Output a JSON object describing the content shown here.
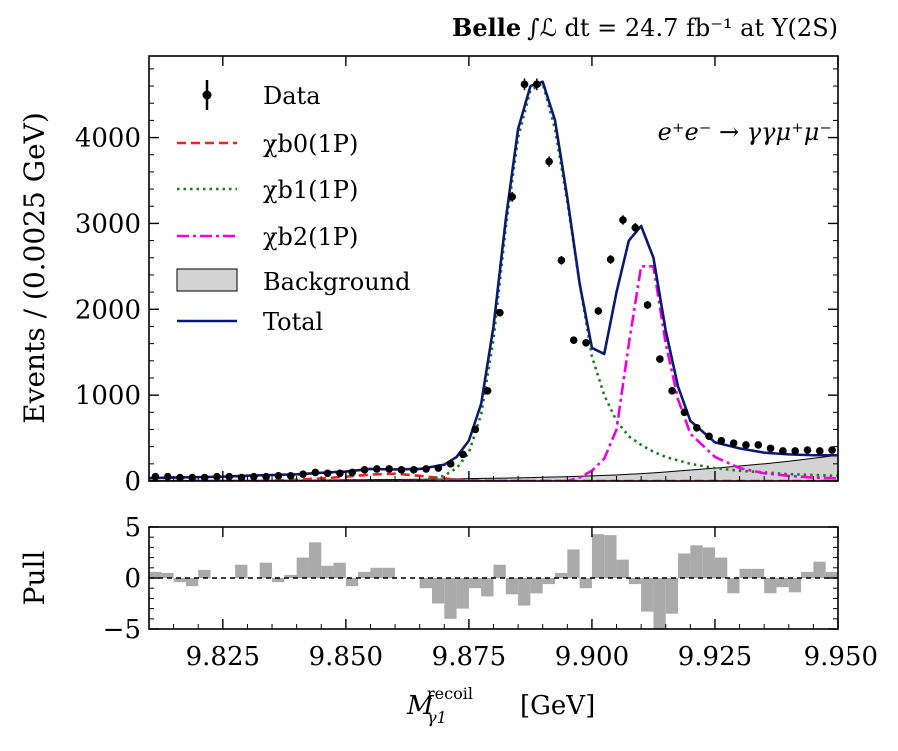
{
  "header": {
    "experiment": "Belle",
    "lumi_text": "∫ℒ dt = 24.7 fb⁻¹ at Υ(2S)"
  },
  "chart_data": [
    {
      "type": "line",
      "name": "main-panel",
      "xlim": [
        9.81,
        9.95
      ],
      "ylim": [
        0,
        4950
      ],
      "yticks": [
        0,
        1000,
        2000,
        3000,
        4000
      ],
      "ytick_labels": [
        "0",
        "1000",
        "2000",
        "3000",
        "4000"
      ],
      "ylabel": "Events / (0.0025 GeV)",
      "annotation": "e⁺e⁻ → γγμ⁺μ⁻",
      "legend": [
        {
          "key": "data",
          "label": "Data"
        },
        {
          "key": "chib0",
          "label": "χb0(1P)"
        },
        {
          "key": "chib1",
          "label": "χb1(1P)"
        },
        {
          "key": "chib2",
          "label": "χb2(1P)"
        },
        {
          "key": "background",
          "label": "Background"
        },
        {
          "key": "total",
          "label": "Total"
        }
      ],
      "colors": {
        "data": "#000000",
        "chib0": "#e8251f",
        "chib1": "#1f7a1f",
        "chib2": "#f000e0",
        "background_fill": "#d3d3d3",
        "total": "#0b1a70"
      },
      "data_points": {
        "x": [
          9.8113,
          9.8138,
          9.8163,
          9.8188,
          9.8213,
          9.8238,
          9.8263,
          9.8288,
          9.8313,
          9.8338,
          9.8363,
          9.8388,
          9.8413,
          9.8438,
          9.8463,
          9.8488,
          9.8513,
          9.8538,
          9.8563,
          9.8588,
          9.8613,
          9.8638,
          9.8663,
          9.8688,
          9.8713,
          9.8738,
          9.8763,
          9.8788,
          9.8813,
          9.8838,
          9.8863,
          9.8888,
          9.8913,
          9.8938,
          9.8963,
          9.8988,
          9.9013,
          9.9038,
          9.9063,
          9.9088,
          9.9113,
          9.9138,
          9.9163,
          9.9188,
          9.9213,
          9.9238,
          9.9263,
          9.9288,
          9.9313,
          9.9338,
          9.9363,
          9.9388,
          9.9413,
          9.9438,
          9.9463,
          9.9488
        ],
        "y": [
          50,
          50,
          40,
          40,
          40,
          50,
          50,
          40,
          50,
          50,
          60,
          60,
          80,
          100,
          90,
          90,
          100,
          130,
          140,
          140,
          130,
          130,
          140,
          150,
          200,
          310,
          600,
          1050,
          1960,
          3310,
          4620,
          4620,
          3720,
          2570,
          1640,
          1610,
          1980,
          2580,
          3040,
          2950,
          2050,
          1420,
          1050,
          800,
          620,
          520,
          470,
          440,
          420,
          420,
          380,
          350,
          350,
          360,
          350,
          360
        ]
      },
      "curves": {
        "x": [
          9.81,
          9.815,
          9.82,
          9.825,
          9.83,
          9.835,
          9.84,
          9.845,
          9.85,
          9.855,
          9.86,
          9.865,
          9.87,
          9.8725,
          9.875,
          9.8775,
          9.88,
          9.8825,
          9.885,
          9.8875,
          9.89,
          9.8925,
          9.895,
          9.8975,
          9.9,
          9.9025,
          9.905,
          9.9075,
          9.91,
          9.9125,
          9.915,
          9.9175,
          9.92,
          9.925,
          9.93,
          9.935,
          9.94,
          9.945,
          9.95
        ],
        "total": [
          35,
          40,
          45,
          50,
          62,
          70,
          78,
          95,
          110,
          140,
          135,
          140,
          190,
          280,
          470,
          900,
          1800,
          3050,
          4100,
          4600,
          4650,
          4200,
          3300,
          2300,
          1550,
          1480,
          2200,
          2800,
          2970,
          2600,
          1750,
          1100,
          700,
          450,
          380,
          330,
          310,
          300,
          300
        ],
        "chib1": [
          0,
          0,
          0,
          0,
          0,
          0,
          0,
          0,
          0,
          0,
          0,
          0,
          60,
          150,
          330,
          780,
          1650,
          2950,
          4000,
          4550,
          4630,
          4100,
          3250,
          2300,
          1450,
          1000,
          700,
          520,
          420,
          340,
          280,
          240,
          200,
          150,
          120,
          100,
          80,
          70,
          60
        ],
        "chib2": [
          0,
          0,
          0,
          0,
          0,
          0,
          0,
          0,
          0,
          0,
          0,
          0,
          0,
          0,
          0,
          0,
          0,
          0,
          0,
          0,
          0,
          0,
          0,
          40,
          120,
          260,
          600,
          1600,
          2500,
          2500,
          1600,
          950,
          550,
          280,
          150,
          90,
          60,
          40,
          30
        ],
        "chib0": [
          0,
          0,
          0,
          0,
          0,
          5,
          15,
          30,
          50,
          75,
          85,
          60,
          30,
          15,
          8,
          4,
          2,
          1,
          0,
          0,
          0,
          0,
          0,
          0,
          0,
          0,
          0,
          0,
          0,
          0,
          0,
          0,
          0,
          0,
          0,
          0,
          0,
          0,
          0
        ],
        "background": [
          5,
          5,
          6,
          7,
          8,
          9,
          10,
          12,
          14,
          16,
          18,
          20,
          23,
          25,
          27,
          30,
          32,
          34,
          37,
          40,
          43,
          47,
          50,
          55,
          60,
          65,
          70,
          78,
          86,
          95,
          105,
          116,
          128,
          150,
          175,
          200,
          230,
          265,
          300
        ]
      }
    },
    {
      "type": "bar",
      "name": "pull-panel",
      "ylim": [
        -5,
        5
      ],
      "yticks": [
        -5,
        0,
        5
      ],
      "ytick_labels": [
        "−5",
        "0",
        "5"
      ],
      "ylabel": "Pull",
      "xlabel": "[GeV]",
      "xlabel_symbol": "M",
      "xlabel_sup": "recoil",
      "xlabel_sub": "γ1",
      "xticks": [
        9.825,
        9.85,
        9.875,
        9.9,
        9.925,
        9.95
      ],
      "xtick_labels": [
        "9.825",
        "9.850",
        "9.875",
        "9.900",
        "9.925",
        "9.950"
      ],
      "bar_color": "#aaaaaa",
      "bin_width": 0.0025,
      "x": [
        9.81,
        9.8125,
        9.815,
        9.8175,
        9.82,
        9.8225,
        9.825,
        9.8275,
        9.83,
        9.8325,
        9.835,
        9.8375,
        9.84,
        9.8425,
        9.845,
        9.8475,
        9.85,
        9.8525,
        9.855,
        9.8575,
        9.86,
        9.8625,
        9.865,
        9.8675,
        9.87,
        9.8725,
        9.875,
        9.8775,
        9.88,
        9.8825,
        9.885,
        9.8875,
        9.89,
        9.8925,
        9.895,
        9.8975,
        9.9,
        9.9025,
        9.905,
        9.9075,
        9.91,
        9.9125,
        9.915,
        9.9175,
        9.92,
        9.9225,
        9.925,
        9.9275,
        9.93,
        9.9325,
        9.935,
        9.9375,
        9.94,
        9.9425,
        9.945,
        9.9475
      ],
      "values": [
        0.6,
        0.5,
        -0.4,
        -0.8,
        0.8,
        0,
        0,
        1.3,
        0,
        1.5,
        -0.4,
        0.3,
        2.0,
        3.5,
        1.2,
        1.5,
        -0.8,
        0.6,
        1.0,
        1.0,
        0,
        0,
        -1.0,
        -2.5,
        -4.0,
        -3.0,
        -1.0,
        -1.8,
        1.3,
        -1.6,
        -2.7,
        -1.5,
        -0.6,
        0.5,
        2.8,
        -1.0,
        4.3,
        4.2,
        1.8,
        -0.6,
        -3.3,
        -5.0,
        -3.5,
        2.4,
        3.2,
        3.0,
        2.0,
        -1.5,
        0.9,
        0.9,
        -1.5,
        -0.9,
        -1.4,
        0.6,
        1.6,
        0.6
      ]
    }
  ]
}
